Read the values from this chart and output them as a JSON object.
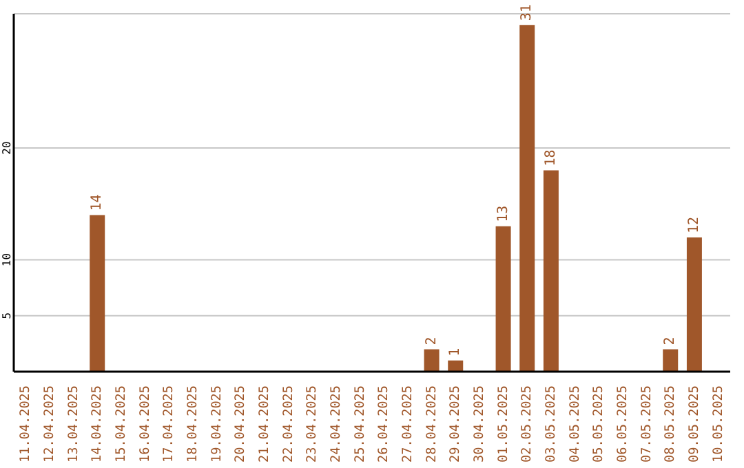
{
  "chart_data": {
    "type": "bar",
    "categories": [
      "11.04.2025",
      "12.04.2025",
      "13.04.2025",
      "14.04.2025",
      "15.04.2025",
      "16.04.2025",
      "17.04.2025",
      "18.04.2025",
      "19.04.2025",
      "20.04.2025",
      "21.04.2025",
      "22.04.2025",
      "23.04.2025",
      "24.04.2025",
      "25.04.2025",
      "26.04.2025",
      "27.04.2025",
      "28.04.2025",
      "29.04.2025",
      "30.04.2025",
      "01.05.2025",
      "02.05.2025",
      "03.05.2025",
      "04.05.2025",
      "05.05.2025",
      "06.05.2025",
      "07.05.2025",
      "08.05.2025",
      "09.05.2025",
      "10.05.2025"
    ],
    "values": [
      0,
      0,
      0,
      14,
      0,
      0,
      0,
      0,
      0,
      0,
      0,
      0,
      0,
      0,
      0,
      0,
      0,
      2,
      1,
      0,
      13,
      31,
      18,
      0,
      0,
      0,
      0,
      2,
      12,
      0
    ],
    "value_labels": [
      null,
      null,
      null,
      "14",
      null,
      null,
      null,
      null,
      null,
      null,
      null,
      null,
      null,
      null,
      null,
      null,
      null,
      "2",
      "1",
      null,
      "13",
      "31",
      "18",
      null,
      null,
      null,
      null,
      "2",
      "12",
      null
    ],
    "color": "#a0572a",
    "ylim": [
      0,
      32
    ],
    "yticks": [
      5,
      10,
      20
    ],
    "grid": "y",
    "legend": false
  }
}
